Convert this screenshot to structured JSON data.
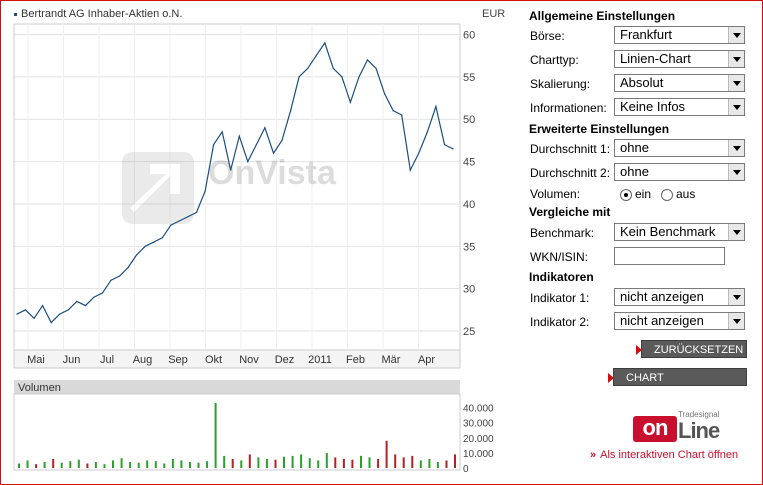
{
  "chart": {
    "title": "Bertrandt AG Inhaber-Aktien o.N.",
    "currency": "EUR",
    "watermark": "OnVista",
    "volume_label": "Volumen",
    "y_ticks": [
      "60",
      "55",
      "50",
      "45",
      "40",
      "35",
      "30",
      "25"
    ],
    "x_ticks": [
      "Mai",
      "Jun",
      "Jul",
      "Aug",
      "Sep",
      "Okt",
      "Nov",
      "Dez",
      "2011",
      "Feb",
      "Mär",
      "Apr"
    ],
    "volume_ticks": [
      "40.000",
      "30.000",
      "20.000",
      "10.000",
      "0"
    ],
    "line_color": "#1c4e80"
  },
  "chart_data": [
    {
      "type": "line",
      "title": "Bertrandt AG Inhaber-Aktien o.N.",
      "ylabel": "EUR",
      "ylim": [
        23,
        61
      ],
      "x": [
        "2010-04-26",
        "2010-05-03",
        "2010-05-10",
        "2010-05-17",
        "2010-05-24",
        "2010-05-31",
        "2010-06-07",
        "2010-06-14",
        "2010-06-21",
        "2010-06-28",
        "2010-07-05",
        "2010-07-12",
        "2010-07-19",
        "2010-07-26",
        "2010-08-02",
        "2010-08-09",
        "2010-08-16",
        "2010-08-23",
        "2010-08-30",
        "2010-09-06",
        "2010-09-13",
        "2010-09-20",
        "2010-09-27",
        "2010-10-04",
        "2010-10-11",
        "2010-10-18",
        "2010-10-25",
        "2010-11-01",
        "2010-11-08",
        "2010-11-15",
        "2010-11-22",
        "2010-11-29",
        "2010-12-06",
        "2010-12-13",
        "2010-12-20",
        "2010-12-27",
        "2011-01-03",
        "2011-01-10",
        "2011-01-17",
        "2011-01-24",
        "2011-01-31",
        "2011-02-07",
        "2011-02-14",
        "2011-02-21",
        "2011-02-28",
        "2011-03-07",
        "2011-03-14",
        "2011-03-21",
        "2011-03-28",
        "2011-04-04",
        "2011-04-11",
        "2011-04-18"
      ],
      "series": [
        {
          "values": [
            27.0,
            27.5,
            26.5,
            28.0,
            26.0,
            27.0,
            27.5,
            28.5,
            28.0,
            29.0,
            29.5,
            31.0,
            31.5,
            32.5,
            34.0,
            35.0,
            35.5,
            36.0,
            37.5,
            38.0,
            38.5,
            39.0,
            41.5,
            47.0,
            48.5,
            44.0,
            48.0,
            45.0,
            47.0,
            49.0,
            46.0,
            47.5,
            51.0,
            55.0,
            56.0,
            57.5,
            59.0,
            56.0,
            55.0,
            52.0,
            55.0,
            57.0,
            56.0,
            53.0,
            51.0,
            50.5,
            44.0,
            46.0,
            48.5,
            51.5,
            47.0,
            46.5
          ]
        }
      ]
    },
    {
      "type": "bar",
      "title": "Volumen",
      "ylim": [
        0,
        45000
      ],
      "values": [
        3000,
        5000,
        2500,
        4000,
        6000,
        3500,
        4500,
        5500,
        3000,
        4000,
        2500,
        5000,
        6500,
        4000,
        3500,
        5000,
        4500,
        3000,
        6000,
        5000,
        4000,
        3500,
        4500,
        43000,
        8000,
        6000,
        5000,
        9000,
        7000,
        6000,
        5500,
        7500,
        8000,
        9000,
        6500,
        5000,
        10000,
        7000,
        6000,
        5500,
        8000,
        7000,
        6000,
        18000,
        9000,
        7000,
        8000,
        5000,
        6000,
        4000,
        5000,
        9000
      ]
    }
  ],
  "panel": {
    "allgemein_title": "Allgemeine Einstellungen",
    "boerse_label": "Börse:",
    "boerse_value": "Frankfurt",
    "charttyp_label": "Charttyp:",
    "charttyp_value": "Linien-Chart",
    "skalierung_label": "Skalierung:",
    "skalierung_value": "Absolut",
    "informationen_label": "Informationen:",
    "informationen_value": "Keine Infos",
    "erweitert_title": "Erweiterte Einstellungen",
    "durchschnitt1_label": "Durchschnitt 1:",
    "durchschnitt1_value": "ohne",
    "durchschnitt2_label": "Durchschnitt 2:",
    "durchschnitt2_value": "ohne",
    "volumen_label": "Volumen:",
    "volumen_ein": "ein",
    "volumen_aus": "aus",
    "vergleiche_title": "Vergleiche mit",
    "benchmark_label": "Benchmark:",
    "benchmark_value": "Kein Benchmark",
    "wkn_label": "WKN/ISIN:",
    "wkn_value": "",
    "indikatoren_title": "Indikatoren",
    "indikator1_label": "Indikator 1:",
    "indikator1_value": "nicht anzeigen",
    "indikator2_label": "Indikator 2:",
    "indikator2_value": "nicht anzeigen",
    "reset_button": "ZURÜCKSETZEN",
    "update_button": "CHART AKTUALISIEREN"
  },
  "footer": {
    "logo_small": "Tradesignal",
    "logo_on": "on",
    "logo_line": "Line",
    "interactive_link": "Als interaktiven Chart öffnen"
  },
  "colors": {
    "accent": "#c8102e",
    "price_line": "#1c4e80",
    "volume_up": "#2ca02c",
    "volume_down": "#b22222"
  }
}
